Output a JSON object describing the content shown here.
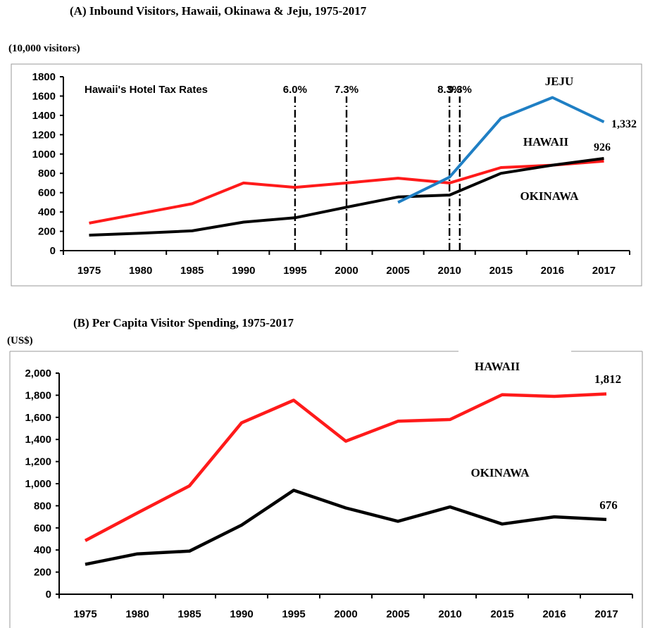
{
  "colors": {
    "hawaii": "#ff1a1a",
    "okinawa": "#000000",
    "jeju": "#1f7fc4"
  },
  "chart_data": [
    {
      "type": "line",
      "title": "(A) Inbound Visitors, Hawaii, Okinawa & Jeju, 1975-2017",
      "ylabel": "(10,000 visitors)",
      "categories": [
        "1975",
        "1980",
        "1985",
        "1990",
        "1995",
        "2000",
        "2005",
        "2010",
        "2015",
        "2016",
        "2017"
      ],
      "ylim": [
        0,
        1800
      ],
      "yticks": [
        "1800",
        "1600",
        "1400",
        "1200",
        "1000",
        "800",
        "600",
        "400",
        "200",
        "0"
      ],
      "grid": false,
      "series": [
        {
          "name": "HAWAII",
          "values": [
            285,
            385,
            485,
            700,
            655,
            700,
            750,
            700,
            860,
            885,
            926
          ]
        },
        {
          "name": "OKINAWA",
          "values": [
            160,
            180,
            205,
            295,
            340,
            450,
            555,
            575,
            800,
            885,
            955
          ]
        },
        {
          "name": "JEJU",
          "values": [
            null,
            null,
            null,
            null,
            null,
            null,
            500,
            760,
            1370,
            1585,
            1332
          ]
        }
      ],
      "annotations": {
        "hotel_tax_title": "Hawaii's Hotel Tax Rates",
        "tax_rates": [
          {
            "label": "6.0%",
            "year": 1995
          },
          {
            "label": "7.3%",
            "year": 2000
          },
          {
            "label": "8.3%",
            "year": 2010
          },
          {
            "label": "9.3%",
            "year": 2011
          }
        ],
        "jeju_end_label": "1,332",
        "hawaii_end_label": "926"
      }
    },
    {
      "type": "line",
      "title": "(B) Per Capita Visitor Spending, 1975-2017",
      "ylabel": "(US$)",
      "categories": [
        "1975",
        "1980",
        "1985",
        "1990",
        "1995",
        "2000",
        "2005",
        "2010",
        "2015",
        "2016",
        "2017"
      ],
      "ylim": [
        0,
        2000
      ],
      "yticks": [
        "2,000",
        "1,800",
        "1,600",
        "1,400",
        "1,200",
        "1,000",
        "800",
        "600",
        "400",
        "200",
        "0"
      ],
      "grid": false,
      "series": [
        {
          "name": "HAWAII",
          "values": [
            485,
            735,
            980,
            1550,
            1755,
            1385,
            1565,
            1580,
            1805,
            1790,
            1812
          ]
        },
        {
          "name": "OKINAWA",
          "values": [
            270,
            365,
            390,
            625,
            940,
            780,
            660,
            790,
            635,
            700,
            676
          ]
        }
      ],
      "annotations": {
        "hawaii_end_label": "1,812",
        "okinawa_end_label": "676"
      }
    }
  ]
}
